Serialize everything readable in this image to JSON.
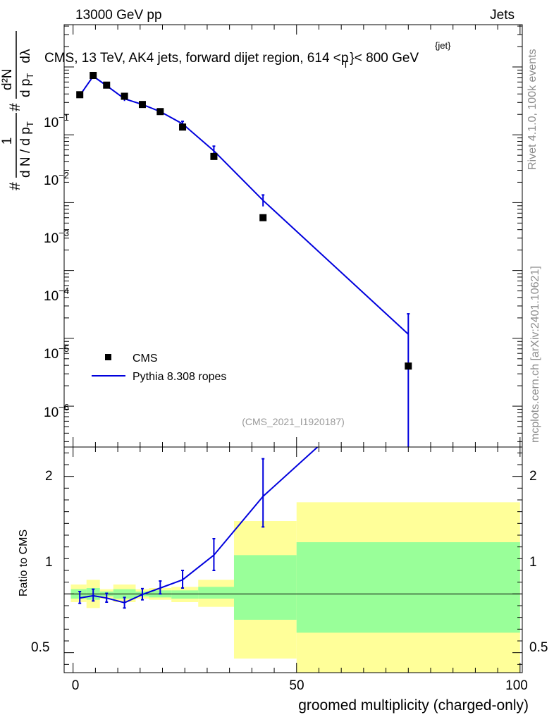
{
  "header": {
    "left": "13000 GeV pp",
    "right": "Jets",
    "title_prefix": "CMS, 13 TeV, AK4 jets, forward dijet region, 614 <p",
    "title_sup": "{jet}",
    "title_sub": "T",
    "title_suffix": "}< 800 GeV"
  },
  "side_labels": {
    "rivet": "Rivet 4.1.0,  100k events",
    "mcplots": "mcplots.cern.ch [arXiv:2401.10621]"
  },
  "watermark": "(CMS_2021_I1920187)",
  "ylabel_main": {
    "hash": "#",
    "one": "1",
    "d2n": "d²N",
    "dn_dpt": "d N / d p",
    "t": "T",
    "dpt_dlambda": "d p",
    "dlambda": "dλ"
  },
  "legend": {
    "cms": "CMS",
    "pythia": "Pythia 8.308 ropes"
  },
  "colors": {
    "mc": "#0000dd",
    "band_outer": "#ffff99",
    "band_inner": "#99ff99",
    "data": "#000000"
  },
  "chart_data": {
    "type": "line",
    "xlabel": "groomed multiplicity (charged-only)",
    "xlim": [
      -2,
      100.5
    ],
    "x_ticks": [
      "0",
      "50",
      "100"
    ],
    "main": {
      "yscale": "log",
      "ylim": [
        2.5e-07,
        0.42
      ],
      "y_ticks": [
        {
          "base": "10",
          "exp": "−1",
          "value": 0.1
        },
        {
          "base": "10",
          "exp": "−2",
          "value": 0.01
        },
        {
          "base": "10",
          "exp": "−3",
          "value": 0.001
        },
        {
          "base": "10",
          "exp": "−4",
          "value": 0.0001
        },
        {
          "base": "10",
          "exp": "−5",
          "value": 1e-05
        },
        {
          "base": "10",
          "exp": "−6",
          "value": 1e-06
        }
      ],
      "series": [
        {
          "name": "CMS",
          "style": "markers",
          "points": [
            {
              "x": 1.5,
              "y": 0.039
            },
            {
              "x": 4.5,
              "y": 0.075
            },
            {
              "x": 7.5,
              "y": 0.054
            },
            {
              "x": 11.5,
              "y": 0.037
            },
            {
              "x": 15.5,
              "y": 0.028
            },
            {
              "x": 19.5,
              "y": 0.022
            },
            {
              "x": 24.5,
              "y": 0.013
            },
            {
              "x": 31.5,
              "y": 0.0048
            },
            {
              "x": 42.5,
              "y": 0.0006
            },
            {
              "x": 75,
              "y": 3.9e-06
            }
          ]
        },
        {
          "name": "Pythia 8.308 ropes",
          "style": "line",
          "points": [
            {
              "x": 1.5,
              "y": 0.038,
              "err_lo": 0.037,
              "err_hi": 0.039
            },
            {
              "x": 4.5,
              "y": 0.073,
              "err_lo": 0.07,
              "err_hi": 0.078
            },
            {
              "x": 7.5,
              "y": 0.053,
              "err_lo": 0.051,
              "err_hi": 0.055
            },
            {
              "x": 11.5,
              "y": 0.034,
              "err_lo": 0.0315,
              "err_hi": 0.036
            },
            {
              "x": 15.5,
              "y": 0.028,
              "err_lo": 0.0265,
              "err_hi": 0.0295
            },
            {
              "x": 19.5,
              "y": 0.022,
              "err_lo": 0.0208,
              "err_hi": 0.0235
            },
            {
              "x": 24.5,
              "y": 0.0145,
              "err_lo": 0.0135,
              "err_hi": 0.0158
            },
            {
              "x": 31.5,
              "y": 0.0058,
              "err_lo": 0.005,
              "err_hi": 0.0068
            },
            {
              "x": 42.5,
              "y": 0.00108,
              "err_lo": 0.00088,
              "err_hi": 0.0013
            },
            {
              "x": 75,
              "y": 1.15e-05,
              "err_lo": 1e-09,
              "err_hi": 2.3e-05
            }
          ]
        }
      ]
    },
    "ratio": {
      "ylabel": "Ratio to CMS",
      "ylim": [
        0.33,
        2.25
      ],
      "y_ticks": [
        {
          "label": "0.5",
          "value": 0.5
        },
        {
          "label": "1",
          "value": 1.0
        },
        {
          "label": "2",
          "value": 2.0
        }
      ],
      "bands": [
        {
          "x0": -0.5,
          "x1": 3,
          "outer": [
            0.93,
            1.08
          ],
          "inner": [
            0.96,
            1.04
          ]
        },
        {
          "x0": 3,
          "x1": 6,
          "outer": [
            0.88,
            1.12
          ],
          "inner": [
            0.95,
            1.05
          ]
        },
        {
          "x0": 6,
          "x1": 9,
          "outer": [
            0.96,
            1.04
          ],
          "inner": [
            0.98,
            1.02
          ]
        },
        {
          "x0": 9,
          "x1": 14,
          "outer": [
            0.93,
            1.08
          ],
          "inner": [
            0.96,
            1.04
          ]
        },
        {
          "x0": 14,
          "x1": 17,
          "outer": [
            0.96,
            1.04
          ],
          "inner": [
            0.98,
            1.02
          ]
        },
        {
          "x0": 17,
          "x1": 22,
          "outer": [
            0.95,
            1.05
          ],
          "inner": [
            0.97,
            1.03
          ]
        },
        {
          "x0": 22,
          "x1": 28,
          "outer": [
            0.93,
            1.06
          ],
          "inner": [
            0.96,
            1.03
          ]
        },
        {
          "x0": 28,
          "x1": 36,
          "outer": [
            0.89,
            1.12
          ],
          "inner": [
            0.96,
            1.06
          ]
        },
        {
          "x0": 36,
          "x1": 50,
          "outer": [
            0.45,
            1.62
          ],
          "inner": [
            0.78,
            1.33
          ]
        },
        {
          "x0": 50,
          "x1": 100,
          "outer": [
            0.33,
            1.78
          ],
          "inner": [
            0.67,
            1.44
          ]
        }
      ],
      "series": [
        {
          "name": "Pythia 8.308 ropes / CMS",
          "points": [
            {
              "x": 1.5,
              "y": 0.965,
              "err_lo": 0.92,
              "err_hi": 1.02
            },
            {
              "x": 4.5,
              "y": 0.985,
              "err_lo": 0.94,
              "err_hi": 1.04
            },
            {
              "x": 7.5,
              "y": 0.965,
              "err_lo": 0.93,
              "err_hi": 1.005
            },
            {
              "x": 11.5,
              "y": 0.925,
              "err_lo": 0.88,
              "err_hi": 0.97
            },
            {
              "x": 15.5,
              "y": 0.995,
              "err_lo": 0.95,
              "err_hi": 1.045
            },
            {
              "x": 19.5,
              "y": 1.05,
              "err_lo": 1.0,
              "err_hi": 1.11
            },
            {
              "x": 24.5,
              "y": 1.12,
              "err_lo": 1.05,
              "err_hi": 1.2
            },
            {
              "x": 31.5,
              "y": 1.33,
              "err_lo": 1.2,
              "err_hi": 1.47
            },
            {
              "x": 42.5,
              "y": 1.83,
              "err_lo": 1.57,
              "err_hi": 2.15
            }
          ],
          "offscale_segment": {
            "x0": 42.5,
            "y0": 1.83,
            "x1": 75,
            "y1": 2.95
          }
        }
      ]
    }
  }
}
